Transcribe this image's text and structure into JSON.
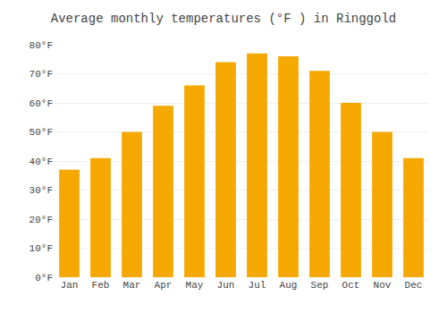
{
  "chart_data": {
    "type": "bar",
    "title": "Average monthly temperatures (°F ) in Ringgold",
    "categories": [
      "Jan",
      "Feb",
      "Mar",
      "Apr",
      "May",
      "Jun",
      "Jul",
      "Aug",
      "Sep",
      "Oct",
      "Nov",
      "Dec"
    ],
    "values": [
      37,
      41,
      50,
      59,
      66,
      74,
      77,
      76,
      71,
      60,
      50,
      41
    ],
    "color": "#F5A800",
    "ylim": [
      0,
      80
    ],
    "yticks": [
      {
        "value": 0,
        "label": "0°F"
      },
      {
        "value": 10,
        "label": "10°F"
      },
      {
        "value": 20,
        "label": "20°F"
      },
      {
        "value": 30,
        "label": "30°F"
      },
      {
        "value": 40,
        "label": "40°F"
      },
      {
        "value": 50,
        "label": "50°F"
      },
      {
        "value": 60,
        "label": "60°F"
      },
      {
        "value": 70,
        "label": "70°F"
      },
      {
        "value": 80,
        "label": "80°F"
      }
    ],
    "grid": true
  }
}
